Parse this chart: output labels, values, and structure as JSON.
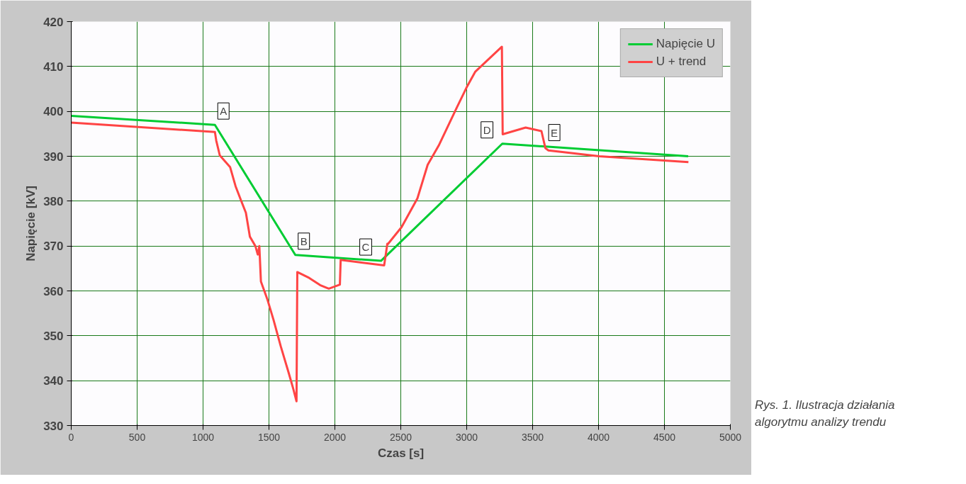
{
  "chart_data": {
    "type": "line",
    "xlabel": "Czas [s]",
    "ylabel": "Napięcie [kV]",
    "x": [
      0,
      1090,
      1700,
      2350,
      3270,
      4680
    ],
    "xlim": [
      0,
      5000
    ],
    "ylim": [
      330,
      420
    ],
    "xticks": [
      0,
      500,
      1000,
      1500,
      2000,
      2500,
      3000,
      3500,
      4000,
      4500,
      5000
    ],
    "yticks": [
      330,
      340,
      350,
      360,
      370,
      380,
      390,
      400,
      410,
      420
    ],
    "grid": true,
    "legend": "top right",
    "line_style": "solid",
    "marker": "none",
    "series": [
      {
        "name": "Napięcie U",
        "color": "#00cc33",
        "values": [
          399,
          397,
          368,
          366.7,
          392.8,
          390
        ]
      },
      {
        "name": "U + trend",
        "color": "#ff4444",
        "x": [
          0,
          1090,
          1100,
          1127,
          1205,
          1247,
          1289,
          1325,
          1355,
          1397,
          1415,
          1427,
          1439,
          1487,
          1535,
          1589,
          1649,
          1685,
          1709,
          1715,
          1805,
          1888,
          1954,
          2038,
          2044,
          2374,
          2398,
          2404,
          2506,
          2626,
          2704,
          2788,
          2848,
          2926,
          3004,
          3064,
          3267,
          3273,
          3447,
          3567,
          3597,
          3620,
          4005,
          4682
        ],
        "values": [
          397.5,
          395.4,
          393.5,
          390.2,
          387.6,
          383.3,
          380.1,
          377.4,
          372.1,
          370,
          368.1,
          370,
          362.1,
          358.2,
          353.5,
          347.7,
          341.8,
          338.1,
          335.4,
          364.2,
          362.9,
          361.3,
          360.5,
          361.4,
          366.9,
          365.7,
          370.5,
          370.5,
          374.2,
          380.6,
          388.1,
          392.4,
          396.1,
          400.9,
          405.6,
          408.8,
          414.4,
          394.9,
          396.4,
          395.6,
          391.8,
          391.3,
          390.0,
          388.7
        ]
      }
    ],
    "annotations": [
      {
        "text": "A",
        "x": 1090,
        "y": 397
      },
      {
        "text": "B",
        "x": 1700,
        "y": 368
      },
      {
        "text": "C",
        "x": 2350,
        "y": 366.7
      },
      {
        "text": "D",
        "x": 3270,
        "y": 392.8
      },
      {
        "text": "E",
        "x": 3600,
        "y": 392.2
      },
      "Rys. 1. Ilustracja działania algorytmu analizy trendu"
    ]
  }
}
